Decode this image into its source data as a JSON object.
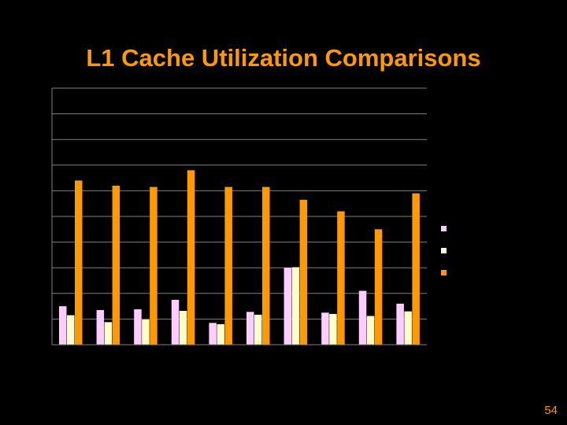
{
  "slide": {
    "title": "L1 Cache Utilization Comparisons",
    "page_number": "54"
  },
  "chart_data": {
    "type": "bar",
    "title": "L1 Cache Utilization Comparisons",
    "categories": [
      "",
      "",
      "",
      "",
      "",
      "",
      "",
      "",
      "",
      ""
    ],
    "ylim": [
      0,
      10
    ],
    "grid": true,
    "legend": "right",
    "series": [
      {
        "color": "#ffccff",
        "values": [
          1.5,
          1.35,
          1.38,
          1.75,
          0.85,
          1.28,
          3.0,
          1.25,
          2.1,
          1.6
        ]
      },
      {
        "color": "#ffffcc",
        "values": [
          1.15,
          0.88,
          0.98,
          1.32,
          0.8,
          1.17,
          3.02,
          1.2,
          1.12,
          1.3
        ]
      },
      {
        "color": "#ff9900",
        "values": [
          6.4,
          6.2,
          6.15,
          6.8,
          6.15,
          6.15,
          5.65,
          5.2,
          4.5,
          5.9
        ]
      }
    ]
  }
}
